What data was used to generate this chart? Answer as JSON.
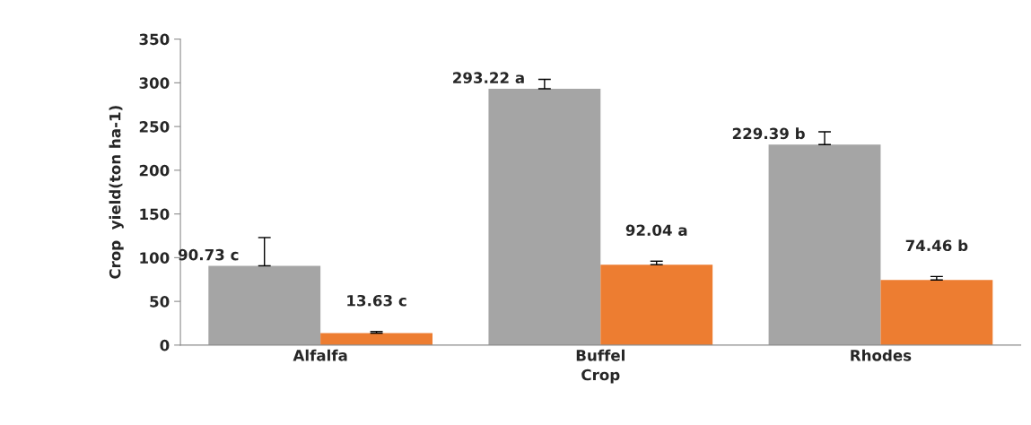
{
  "chart_data": {
    "type": "bar",
    "xlabel": "Crop",
    "ylabel": "Crop  yield(ton ha-1)",
    "categories": [
      "Alfalfa",
      "Buffel",
      "Rhodes"
    ],
    "series": [
      {
        "color": "#a5a5a5",
        "values": [
          90.73,
          293.22,
          229.39
        ],
        "errors": [
          [
            90.73,
            123
          ],
          [
            293.22,
            304
          ],
          [
            229.39,
            244
          ]
        ],
        "value_labels": [
          "90.73 c",
          "293.22 a",
          "229.39 b"
        ]
      },
      {
        "color": "#ed7d31",
        "values": [
          13.63,
          92.04,
          74.46
        ],
        "errors": [
          [
            13.63,
            15.5
          ],
          [
            92.04,
            96
          ],
          [
            74.46,
            78.5
          ]
        ],
        "value_labels": [
          "13.63 c",
          "92.04 a",
          "74.46 b"
        ]
      }
    ],
    "ylim": [
      0,
      350
    ],
    "yticks": [
      0,
      50,
      100,
      150,
      200,
      250,
      300,
      350
    ],
    "grid": false,
    "legend": false
  }
}
